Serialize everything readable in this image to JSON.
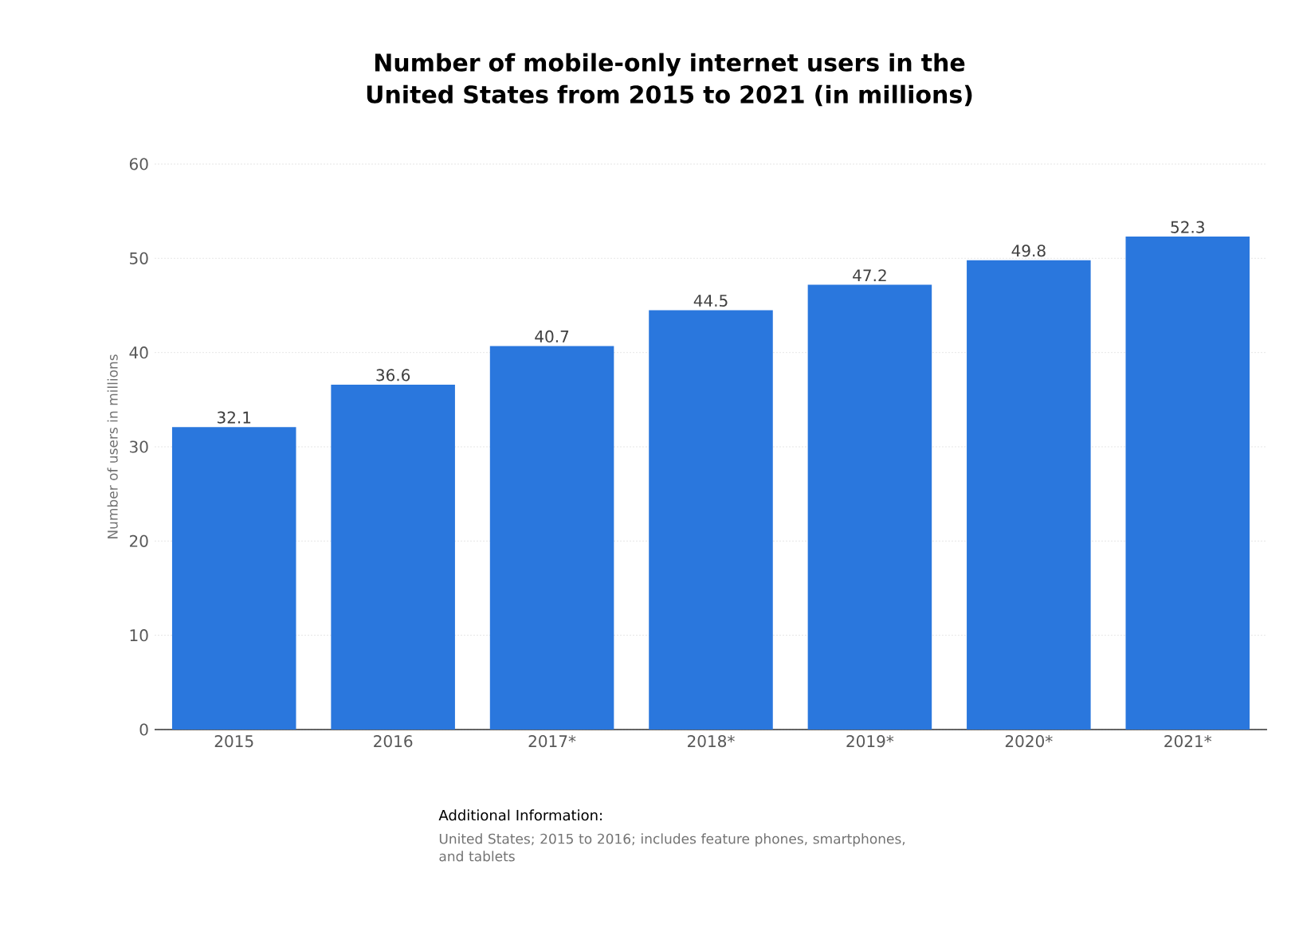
{
  "chart_data": {
    "type": "bar",
    "title": "Number of mobile-only internet users in the United States from 2015 to 2021 (in millions)",
    "ylabel": "Number of users in millions",
    "categories": [
      "2015",
      "2016",
      "2017*",
      "2018*",
      "2019*",
      "2020*",
      "2021*"
    ],
    "values": [
      32.1,
      36.6,
      40.7,
      44.5,
      47.2,
      49.8,
      52.3
    ],
    "color": "#2a77dd",
    "ylim": [
      0,
      60
    ],
    "yticks": [
      0,
      10,
      20,
      30,
      40,
      50,
      60
    ],
    "grid": "y",
    "data_labels": true,
    "annotations": [
      "Additional Information:",
      "United States; 2015 to 2016; includes feature phones, smartphones, and tablets"
    ]
  }
}
